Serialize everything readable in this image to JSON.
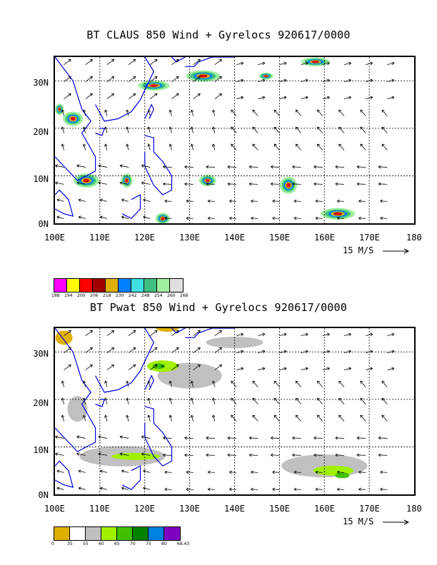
{
  "panel1": {
    "title": "BT CLAUS 850 Wind + Gyrelocs 920617/0000",
    "x_ticks": [
      "100E",
      "110E",
      "120E",
      "130E",
      "140E",
      "150E",
      "160E",
      "170E",
      "180"
    ],
    "y_ticks": [
      "30N",
      "20N",
      "10N",
      "0N"
    ],
    "scale_text": "15 M/S",
    "legend_values": [
      "188",
      "194",
      "200",
      "206",
      "218",
      "230",
      "242",
      "248",
      "254",
      "260",
      "266"
    ],
    "legend_colors": [
      "#ff00ff",
      "#ffff00",
      "#ff0000",
      "#a00000",
      "#e0b000",
      "#0080ff",
      "#40e0e0",
      "#40c080",
      "#a0f0a0",
      "#e0e0e0"
    ]
  },
  "panel2": {
    "title": "BT Pwat 850 Wind + Gyrelocs 920617/0000",
    "x_ticks": [
      "100E",
      "110E",
      "120E",
      "130E",
      "140E",
      "150E",
      "160E",
      "170E",
      "180"
    ],
    "y_ticks": [
      "30N",
      "20N",
      "10N",
      "0N"
    ],
    "scale_text": "15 M/S",
    "legend_values": [
      "0",
      "35",
      "55",
      "60",
      "65",
      "70",
      "75",
      "80",
      "68.43"
    ],
    "legend_colors": [
      "#e0b000",
      "#ffffff",
      "#c0c0c0",
      "#a0f000",
      "#40c000",
      "#008000",
      "#0080e0",
      "#8000c0"
    ]
  }
}
